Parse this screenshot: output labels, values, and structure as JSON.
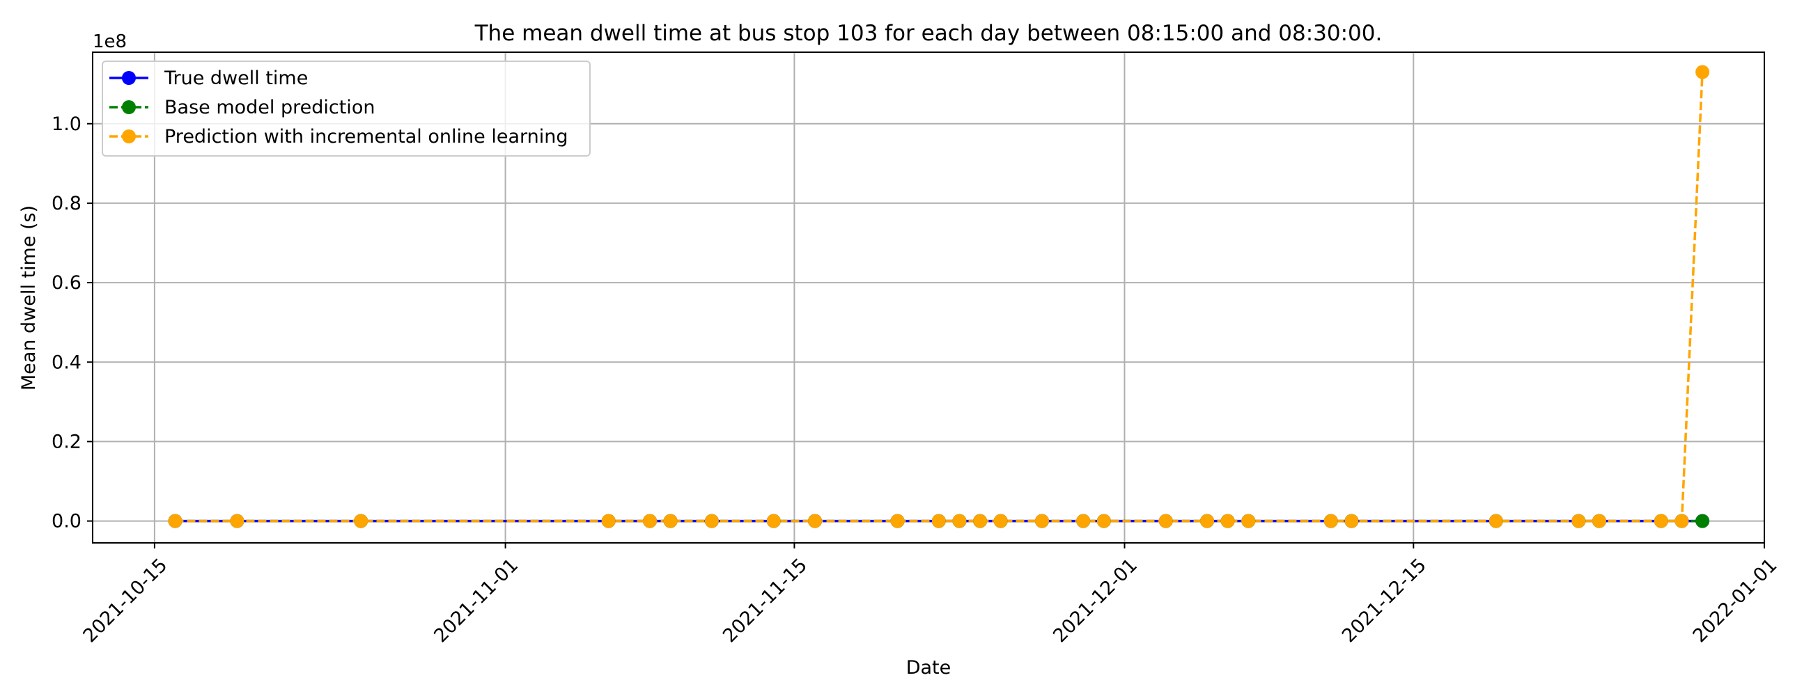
{
  "chart_data": {
    "type": "line",
    "title": "The mean dwell time at bus stop 103 for each day between 08:15:00 and 08:30:00.",
    "xlabel": "Date",
    "ylabel": "Mean dwell time (s)",
    "y_offset_label": "1e8",
    "y_scale_factor": 100000000,
    "xlim": [
      "2021-10-12",
      "2022-01-01"
    ],
    "ylim": [
      -0.055,
      1.18
    ],
    "x_ticks": [
      "2021-10-15",
      "2021-11-01",
      "2021-11-15",
      "2021-12-01",
      "2021-12-15",
      "2022-01-01"
    ],
    "y_ticks": [
      0.0,
      0.2,
      0.4,
      0.6,
      0.8,
      1.0
    ],
    "y_tick_labels": [
      "0.0",
      "0.2",
      "0.4",
      "0.6",
      "0.8",
      "1.0"
    ],
    "grid": true,
    "legend_position": "top-left",
    "x": [
      "2021-10-16",
      "2021-10-19",
      "2021-10-25",
      "2021-11-06",
      "2021-11-08",
      "2021-11-09",
      "2021-11-11",
      "2021-11-14",
      "2021-11-16",
      "2021-11-20",
      "2021-11-22",
      "2021-11-23",
      "2021-11-24",
      "2021-11-25",
      "2021-11-27",
      "2021-11-29",
      "2021-11-30",
      "2021-12-03",
      "2021-12-05",
      "2021-12-06",
      "2021-12-07",
      "2021-12-11",
      "2021-12-12",
      "2021-12-19",
      "2021-12-23",
      "2021-12-24",
      "2021-12-27",
      "2021-12-28",
      "2021-12-29"
    ],
    "series": [
      {
        "name": "True dwell time",
        "color": "#0000ff",
        "line_style": "solid",
        "values": [
          0,
          0,
          0,
          0,
          0,
          0,
          0,
          0,
          0,
          0,
          0,
          0,
          0,
          0,
          0,
          0,
          0,
          0,
          0,
          0,
          0,
          0,
          0,
          0,
          0,
          0,
          0,
          0,
          0
        ]
      },
      {
        "name": "Base model prediction",
        "color": "#008000",
        "line_style": "dashed",
        "values": [
          0,
          0,
          0,
          0,
          0,
          0,
          0,
          0,
          0,
          0,
          0,
          0,
          0,
          0,
          0,
          0,
          0,
          0,
          0,
          0,
          0,
          0,
          0,
          0,
          0,
          0,
          0,
          0,
          0
        ]
      },
      {
        "name": "Prediction with incremental online learning",
        "color": "#ffa500",
        "line_style": "dashed",
        "values": [
          0,
          0,
          0,
          0,
          0,
          0,
          0,
          0,
          0,
          0,
          0,
          0,
          0,
          0,
          0,
          0,
          0,
          0,
          0,
          0,
          0,
          0,
          0,
          0,
          0,
          0,
          0,
          0,
          1.13
        ]
      }
    ]
  }
}
